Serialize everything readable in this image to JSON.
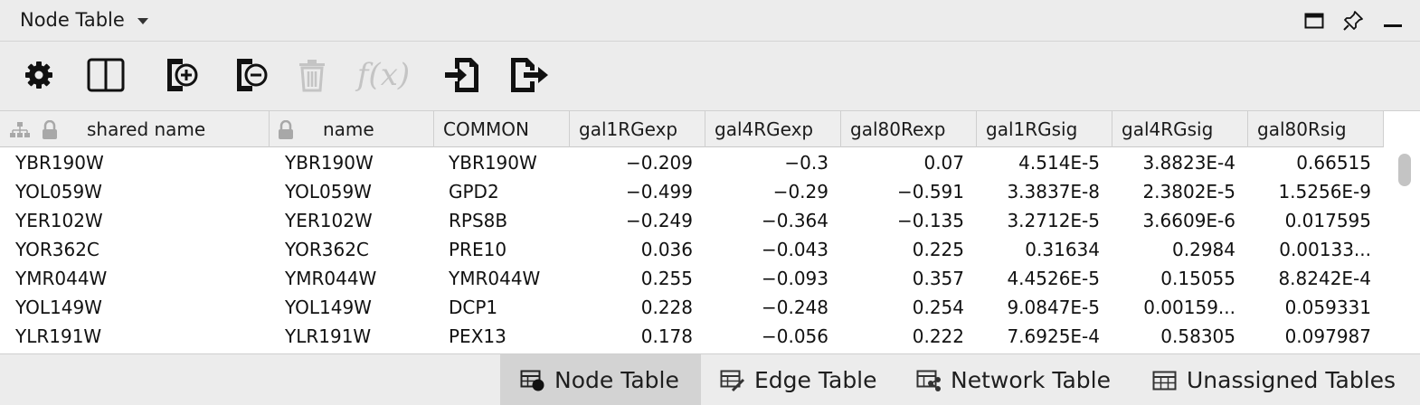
{
  "panel": {
    "title": "Node Table"
  },
  "window_controls": [
    "maximize-icon",
    "pin-icon",
    "minimize-icon"
  ],
  "toolbar": {
    "buttons": [
      {
        "name": "settings",
        "icon": "gear-icon",
        "enabled": true
      },
      {
        "name": "show-columns",
        "icon": "columns-icon",
        "enabled": true
      },
      {
        "name": "add-column",
        "icon": "add-column-icon",
        "enabled": true
      },
      {
        "name": "remove-column",
        "icon": "remove-column-icon",
        "enabled": true
      },
      {
        "name": "delete",
        "icon": "trash-icon",
        "enabled": false
      },
      {
        "name": "function",
        "icon": "function-icon",
        "label": "f(x)",
        "enabled": false
      },
      {
        "name": "import",
        "icon": "import-icon",
        "enabled": true
      },
      {
        "name": "export",
        "icon": "export-icon",
        "enabled": true
      }
    ]
  },
  "table": {
    "columns": [
      "shared name",
      "name",
      "COMMON",
      "gal1RGexp",
      "gal4RGexp",
      "gal80Rexp",
      "gal1RGsig",
      "gal4RGsig",
      "gal80Rsig"
    ],
    "rows": [
      [
        "YBR190W",
        "YBR190W",
        "YBR190W",
        "-0.209",
        "-0.3",
        "0.07",
        "4.514E-5",
        "3.8823E-4",
        "0.66515"
      ],
      [
        "YOL059W",
        "YOL059W",
        "GPD2",
        "-0.499",
        "-0.29",
        "-0.591",
        "3.3837E-8",
        "2.3802E-5",
        "1.5256E-9"
      ],
      [
        "YER102W",
        "YER102W",
        "RPS8B",
        "-0.249",
        "-0.364",
        "-0.135",
        "3.2712E-5",
        "3.6609E-6",
        "0.017595"
      ],
      [
        "YOR362C",
        "YOR362C",
        "PRE10",
        "0.036",
        "-0.043",
        "0.225",
        "0.31634",
        "0.2984",
        "0.00133..."
      ],
      [
        "YMR044W",
        "YMR044W",
        "YMR044W",
        "0.255",
        "-0.093",
        "0.357",
        "4.4526E-5",
        "0.15055",
        "8.8242E-4"
      ],
      [
        "YOL149W",
        "YOL149W",
        "DCP1",
        "0.228",
        "-0.248",
        "0.254",
        "9.0847E-5",
        "0.00159...",
        "0.059331"
      ],
      [
        "YLR191W",
        "YLR191W",
        "PEX13",
        "0.178",
        "-0.056",
        "0.222",
        "7.6925E-4",
        "0.58305",
        "0.097987"
      ]
    ]
  },
  "tabs": [
    {
      "label": "Node Table",
      "icon": "node-table-icon",
      "active": true
    },
    {
      "label": "Edge Table",
      "icon": "edge-table-icon",
      "active": false
    },
    {
      "label": "Network Table",
      "icon": "network-table-icon",
      "active": false
    },
    {
      "label": "Unassigned Tables",
      "icon": "table-icon",
      "active": false
    }
  ],
  "colors": {
    "background": "#ececec",
    "active_tab": "#d3d3d3",
    "disabled_icon": "#c4c4c4",
    "icon": "#111111"
  }
}
